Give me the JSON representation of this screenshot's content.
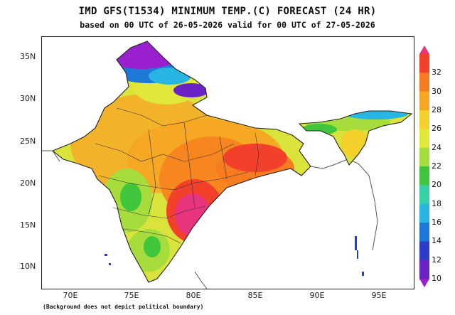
{
  "title": "IMD GFS(T1534) MINIMUM TEMP.(C) FORECAST (24 HR)",
  "subtitle": "based on 00 UTC of 26-05-2026 valid for 00 UTC of 27-05-2026",
  "footnote": "(Background does not depict political boundary)",
  "lat_labels": [
    "35N",
    "30N",
    "25N",
    "20N",
    "15N",
    "10N"
  ],
  "lon_labels": [
    "70E",
    "75E",
    "80E",
    "85E",
    "90E",
    "95E"
  ],
  "colorbar": {
    "labels": [
      "32",
      "30",
      "28",
      "26",
      "24",
      "22",
      "20",
      "18",
      "16",
      "14",
      "12",
      "10"
    ],
    "colors": [
      "#e8337d",
      "#f2402a",
      "#f77b1f",
      "#f6a724",
      "#f3d12a",
      "#e0e83a",
      "#a6dd3c",
      "#3fc63c",
      "#35d1a6",
      "#27b5e3",
      "#1d78d8",
      "#2b3dc8",
      "#6a24c6",
      "#9a1fce"
    ]
  }
}
